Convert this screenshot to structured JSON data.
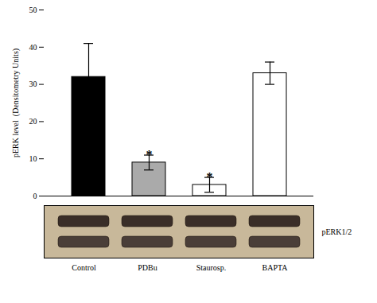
{
  "chart_data": {
    "type": "bar",
    "categories": [
      "Control",
      "PDBu",
      "Staurosp.",
      "BAPTA"
    ],
    "values": [
      32,
      9,
      3,
      33
    ],
    "errors": [
      9,
      2,
      2,
      3
    ],
    "colors": [
      "black",
      "#aaaaaa",
      "white",
      "white"
    ],
    "ylabel": "pERK level  (Densitometry Units)",
    "ylim": [
      0,
      50
    ],
    "yticks": [
      0,
      10,
      20,
      30,
      40,
      50
    ],
    "annotations": [
      {
        "category": "PDBu",
        "text": "*"
      },
      {
        "category": "Staurosp.",
        "text": "*"
      },
      {
        "text": "pERK1/2"
      }
    ]
  }
}
